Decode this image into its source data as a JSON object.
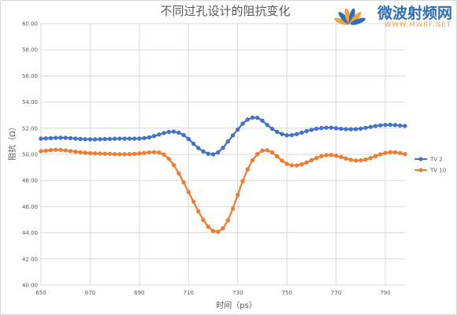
{
  "watermark": {
    "brand_cn": "微波射频网",
    "brand_url": "WWW.MWRF.NET",
    "logo_icon": "fan-flower-logo-icon"
  },
  "colors": {
    "tv2": "#4472C4",
    "tv10": "#ED7D31",
    "grid": "#D9D9D9",
    "text": "#595959",
    "frame": "#D9D9D9",
    "brand_blue": "#2F6DB5",
    "brand_orange": "#F0A33A"
  },
  "chart_data": {
    "type": "line",
    "title": "不同过孔设计的阻抗变化",
    "xlabel": "时间（ps）",
    "ylabel": "阻抗（Ω）",
    "xlim": [
      650,
      798
    ],
    "ylim": [
      40,
      60
    ],
    "x_ticks": [
      "650",
      "670",
      "690",
      "710",
      "730",
      "750",
      "770",
      "790"
    ],
    "y_ticks": [
      "40.00",
      "42.00",
      "44.00",
      "46.00",
      "48.00",
      "50.00",
      "52.00",
      "54.00",
      "56.00",
      "58.00",
      "60.00"
    ],
    "grid": true,
    "markers": true,
    "legend": "right",
    "x": [
      650,
      652,
      654,
      656,
      658,
      660,
      662,
      664,
      666,
      668,
      670,
      672,
      674,
      676,
      678,
      680,
      682,
      684,
      686,
      688,
      690,
      692,
      694,
      696,
      698,
      700,
      702,
      704,
      706,
      708,
      710,
      712,
      714,
      716,
      718,
      720,
      722,
      724,
      726,
      728,
      730,
      732,
      734,
      736,
      738,
      740,
      742,
      744,
      746,
      748,
      750,
      752,
      754,
      756,
      758,
      760,
      762,
      764,
      766,
      768,
      770,
      772,
      774,
      776,
      778,
      780,
      782,
      784,
      786,
      788,
      790,
      792,
      794,
      796,
      798
    ],
    "series": [
      {
        "name": "TV 2",
        "color": "#4472C4",
        "values": [
          51.2,
          51.22,
          51.24,
          51.26,
          51.27,
          51.26,
          51.24,
          51.21,
          51.18,
          51.16,
          51.15,
          51.15,
          51.16,
          51.17,
          51.18,
          51.19,
          51.2,
          51.2,
          51.2,
          51.2,
          51.21,
          51.24,
          51.3,
          51.4,
          51.52,
          51.63,
          51.71,
          51.74,
          51.66,
          51.48,
          51.18,
          50.82,
          50.48,
          50.22,
          50.05,
          50.0,
          50.15,
          50.5,
          50.98,
          51.45,
          51.9,
          52.35,
          52.66,
          52.81,
          52.8,
          52.58,
          52.25,
          51.95,
          51.72,
          51.55,
          51.46,
          51.47,
          51.55,
          51.66,
          51.78,
          51.88,
          51.96,
          52.01,
          52.04,
          52.04,
          52.0,
          51.96,
          51.93,
          51.92,
          51.93,
          51.97,
          52.03,
          52.1,
          52.17,
          52.22,
          52.25,
          52.26,
          52.24,
          52.2,
          52.17
        ]
      },
      {
        "name": "TV 10",
        "color": "#ED7D31",
        "values": [
          50.24,
          50.28,
          50.32,
          50.35,
          50.34,
          50.3,
          50.25,
          50.2,
          50.16,
          50.12,
          50.09,
          50.07,
          50.06,
          50.05,
          50.04,
          50.02,
          50.01,
          50.01,
          50.02,
          50.04,
          50.07,
          50.11,
          50.15,
          50.17,
          50.14,
          49.98,
          49.66,
          49.18,
          48.55,
          47.85,
          47.12,
          46.38,
          45.64,
          44.98,
          44.46,
          44.14,
          44.08,
          44.34,
          44.95,
          45.85,
          46.9,
          47.95,
          48.85,
          49.55,
          50.02,
          50.28,
          50.32,
          50.15,
          49.85,
          49.52,
          49.28,
          49.16,
          49.15,
          49.24,
          49.38,
          49.55,
          49.72,
          49.86,
          49.94,
          49.96,
          49.9,
          49.8,
          49.68,
          49.58,
          49.53,
          49.54,
          49.6,
          49.72,
          49.86,
          50.0,
          50.11,
          50.16,
          50.16,
          50.1,
          50.02
        ]
      }
    ]
  }
}
